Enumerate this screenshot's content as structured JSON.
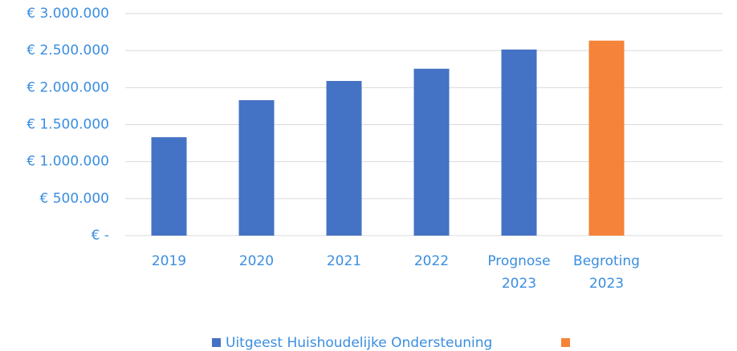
{
  "chart_data": {
    "type": "bar",
    "categories": [
      "2019",
      "2020",
      "2021",
      "2022",
      "Prognose 2023",
      "Begroting 2023"
    ],
    "series": [
      {
        "name": "Uitgeest Huishoudelijke Ondersteuning",
        "color": "#4472c4",
        "values": [
          1330000,
          1830000,
          2090000,
          2255000,
          2515000,
          null
        ]
      },
      {
        "color": "#f5833a",
        "values": [
          null,
          null,
          null,
          null,
          null,
          2635000
        ]
      }
    ],
    "ylim": [
      0,
      3000000
    ],
    "yticks": [
      {
        "value": 0,
        "label": "€ -"
      },
      {
        "value": 500000,
        "label": "€ 500.000"
      },
      {
        "value": 1000000,
        "label": "€ 1.000.000"
      },
      {
        "value": 1500000,
        "label": "€ 1.500.000"
      },
      {
        "value": 2000000,
        "label": "€ 2.000.000"
      },
      {
        "value": 2500000,
        "label": "€ 2.500.000"
      },
      {
        "value": 3000000,
        "label": "€ 3.000.000"
      }
    ],
    "grid": true,
    "legend": "bottom"
  }
}
